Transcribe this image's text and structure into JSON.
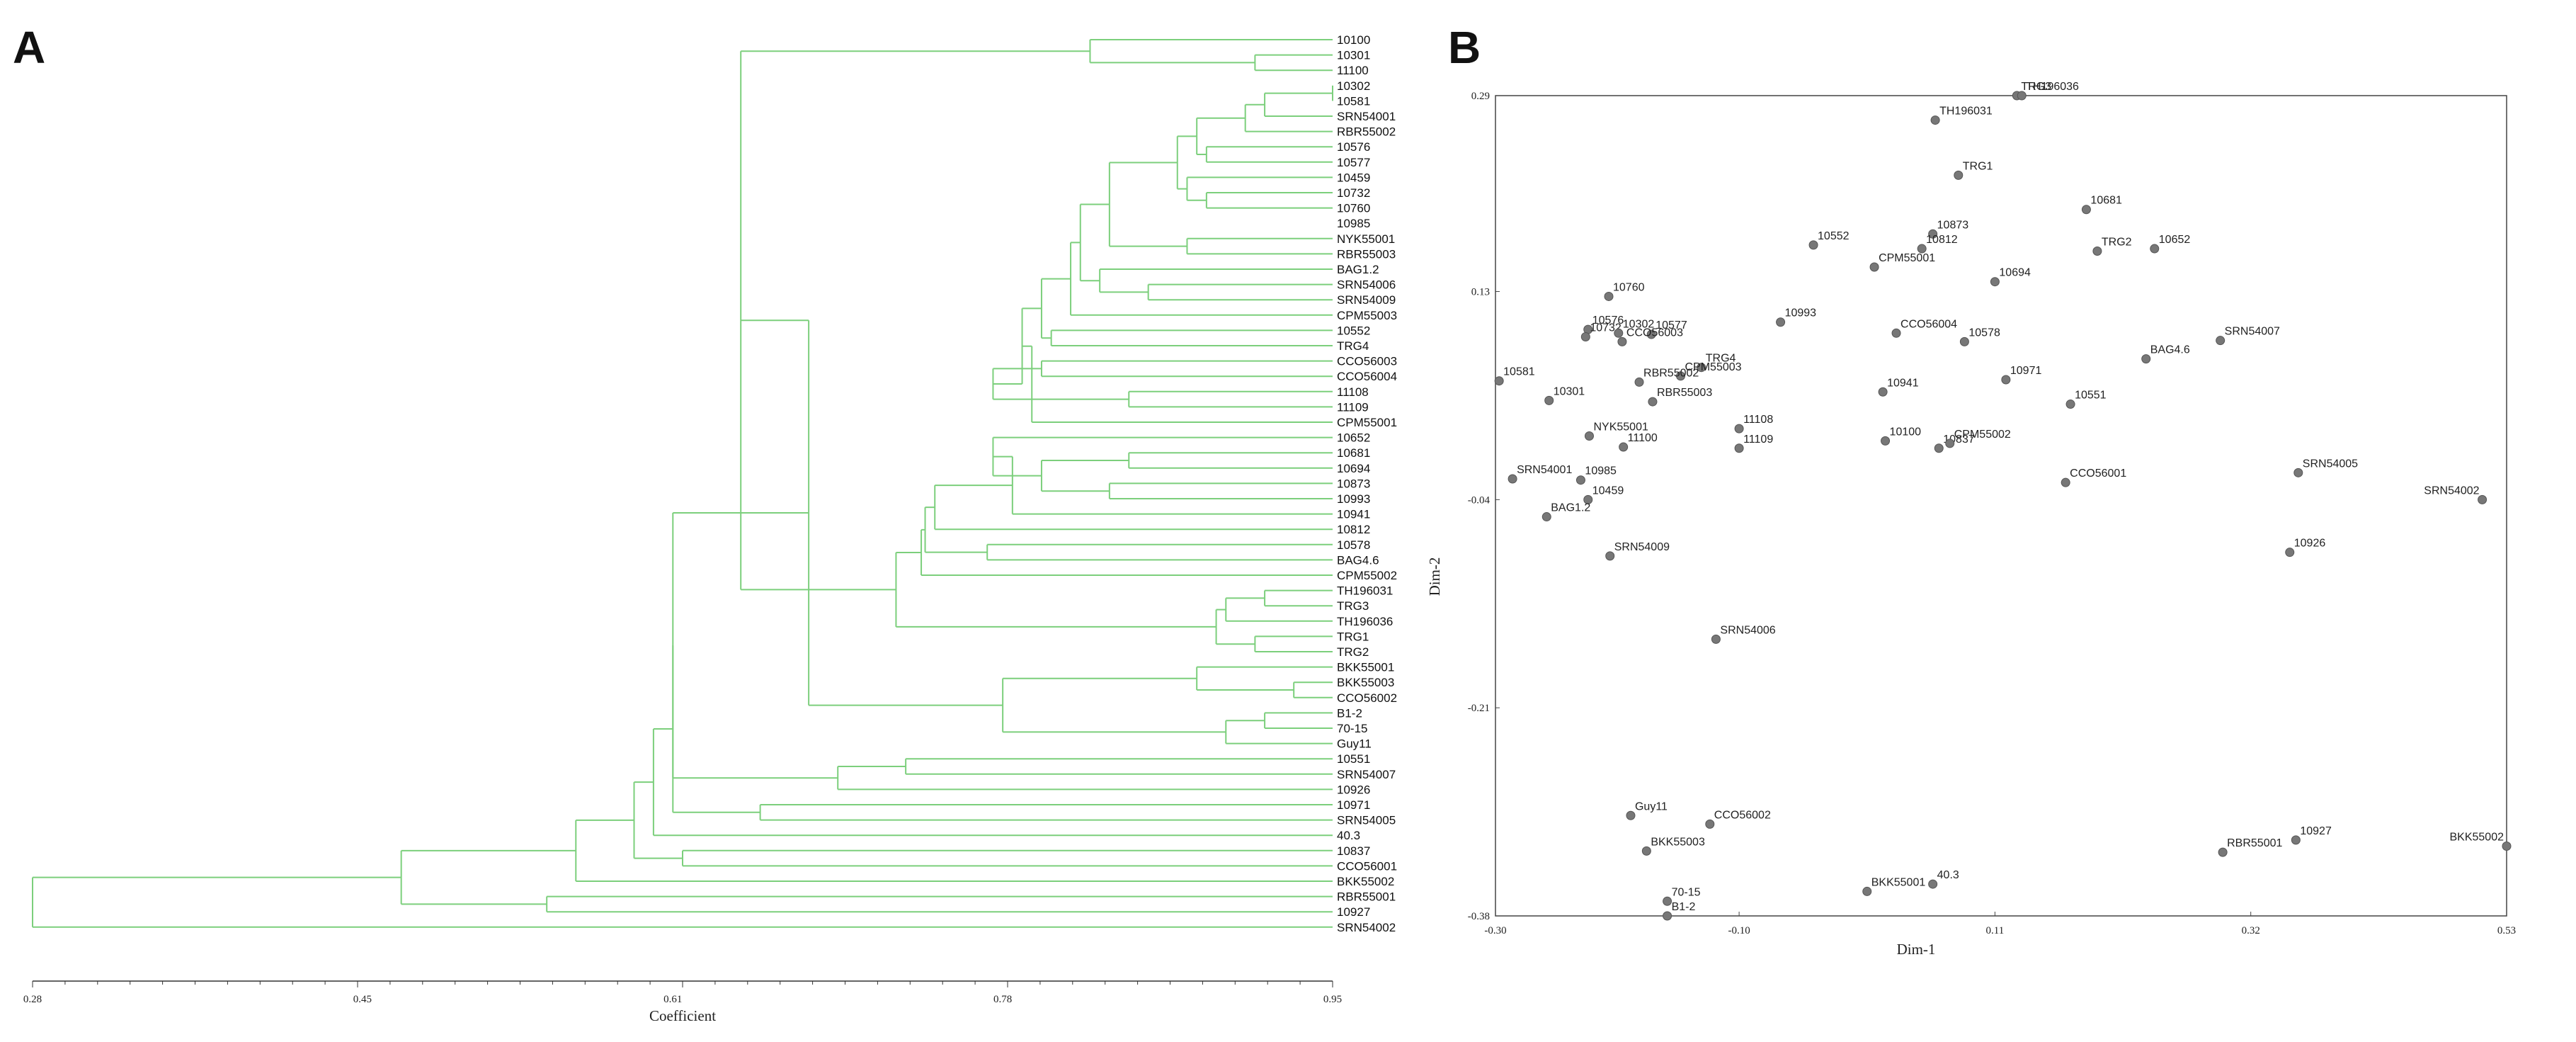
{
  "panels": {
    "a_label": "A",
    "b_label": "B"
  },
  "chart_data": [
    {
      "type": "dendrogram",
      "xlabel": "Coefficient",
      "xlim": [
        0.28,
        0.95
      ],
      "xticks": [
        "0.28",
        "0.45",
        "0.61",
        "0.78",
        "0.95"
      ],
      "line_color": "#7ccf7c",
      "leaves": [
        "10100",
        "10301",
        "11100",
        "10302",
        "10581",
        "SRN54001",
        "RBR55002",
        "10576",
        "10577",
        "10459",
        "10732",
        "10760",
        "10985",
        "NYK55001",
        "RBR55003",
        "BAG1.2",
        "SRN54006",
        "SRN54009",
        "CPM55003",
        "10552",
        "TRG4",
        "CCO56003",
        "CCO56004",
        "11108",
        "11109",
        "CPM55001",
        "10652",
        "10681",
        "10694",
        "10873",
        "10993",
        "10941",
        "10812",
        "10578",
        "BAG4.6",
        "CPM55002",
        "TH196031",
        "TRG3",
        "TH196036",
        "TRG1",
        "TRG2",
        "BKK55001",
        "BKK55003",
        "CCO56002",
        "B1-2",
        "70-15",
        "Guy11",
        "10551",
        "SRN54007",
        "10926",
        "10971",
        "SRN54005",
        "40.3",
        "10837",
        "CCO56001",
        "BKK55002",
        "RBR55001",
        "10927",
        "SRN54002"
      ],
      "merges": [
        [
          1,
          2,
          0.91
        ],
        [
          0,
          "n0",
          0.825
        ],
        [
          3,
          4,
          0.95
        ],
        [
          "n2",
          5,
          0.915
        ],
        [
          "n3",
          6,
          0.905
        ],
        [
          7,
          8,
          0.885
        ],
        [
          "n4",
          "n5",
          0.88
        ],
        [
          10,
          11,
          0.885
        ],
        [
          9,
          "n7",
          0.875
        ],
        [
          "n6",
          "n8",
          0.87
        ],
        [
          13,
          14,
          0.875
        ],
        [
          "n9",
          "n10",
          0.835
        ],
        [
          16,
          17,
          0.855
        ],
        [
          15,
          "n12",
          0.83
        ],
        [
          "n11",
          "n13",
          0.82
        ],
        [
          18,
          "n14",
          0.815
        ],
        [
          19,
          20,
          0.805
        ],
        [
          "n15",
          "n16",
          0.8
        ],
        [
          21,
          22,
          0.8
        ],
        [
          23,
          24,
          0.845
        ],
        [
          "n18",
          "n19",
          0.775
        ],
        [
          "n17",
          "n20",
          0.79
        ],
        [
          "n21",
          25,
          0.795
        ],
        [
          27,
          28,
          0.845
        ],
        [
          29,
          30,
          0.835
        ],
        [
          "n23",
          "n24",
          0.8
        ],
        [
          26,
          "n25",
          0.775
        ],
        [
          "n26",
          31,
          0.785
        ],
        [
          "n27",
          32,
          0.745
        ],
        [
          33,
          34,
          0.772
        ],
        [
          "n28",
          "n29",
          0.74
        ],
        [
          "n30",
          35,
          0.738
        ],
        [
          36,
          37,
          0.915
        ],
        [
          "n32",
          38,
          0.895
        ],
        [
          39,
          40,
          0.91
        ],
        [
          "n33",
          "n34",
          0.89
        ],
        [
          "n31",
          "n35",
          0.725
        ],
        [
          "n1",
          "n36",
          0.645
        ],
        [
          42,
          43,
          0.93
        ],
        [
          41,
          "n38",
          0.88
        ],
        [
          44,
          45,
          0.915
        ],
        [
          "n40",
          46,
          0.895
        ],
        [
          "n39",
          "n41",
          0.78
        ],
        [
          "n37",
          "n42",
          0.68
        ],
        [
          47,
          48,
          0.73
        ],
        [
          49,
          "n44",
          0.695
        ],
        [
          "n43",
          "n45",
          0.61
        ],
        [
          50,
          51,
          0.655
        ],
        [
          "n46",
          "n47",
          0.61
        ],
        [
          "n48",
          52,
          0.6
        ],
        [
          53,
          54,
          0.615
        ],
        [
          "n49",
          "n50",
          0.59
        ],
        [
          "n51",
          55,
          0.56
        ],
        [
          56,
          57,
          0.545
        ],
        [
          "n52",
          "n53",
          0.47
        ],
        [
          "n54",
          58,
          0.28
        ]
      ]
    },
    {
      "type": "scatter",
      "xlabel": "Dim-1",
      "ylabel": "Dim-2",
      "xlim": [
        -0.3,
        0.53
      ],
      "ylim": [
        -0.38,
        0.29
      ],
      "xticks": [
        "-0.30",
        "-0.10",
        "0.11",
        "0.32",
        "0.53"
      ],
      "yticks": [
        "0.29",
        "0.13",
        "-0.04",
        "-0.21",
        "-0.38"
      ],
      "marker_color": "#777777",
      "points": [
        {
          "label": "TRG3",
          "x": 0.128,
          "y": 0.29
        },
        {
          "label": "TH196036",
          "x": 0.132,
          "y": 0.29
        },
        {
          "label": "TH196031",
          "x": 0.061,
          "y": 0.27
        },
        {
          "label": "TRG1",
          "x": 0.08,
          "y": 0.225
        },
        {
          "label": "10681",
          "x": 0.185,
          "y": 0.197
        },
        {
          "label": "10873",
          "x": 0.059,
          "y": 0.177
        },
        {
          "label": "10552",
          "x": -0.039,
          "y": 0.168
        },
        {
          "label": "10812",
          "x": 0.05,
          "y": 0.165
        },
        {
          "label": "CPM55001",
          "x": 0.011,
          "y": 0.15
        },
        {
          "label": "TRG2",
          "x": 0.194,
          "y": 0.163
        },
        {
          "label": "10652",
          "x": 0.241,
          "y": 0.165
        },
        {
          "label": "10694",
          "x": 0.11,
          "y": 0.138
        },
        {
          "label": "10760",
          "x": -0.207,
          "y": 0.126
        },
        {
          "label": "10993",
          "x": -0.066,
          "y": 0.105
        },
        {
          "label": "10576",
          "x": -0.224,
          "y": 0.099
        },
        {
          "label": "10732",
          "x": -0.226,
          "y": 0.093
        },
        {
          "label": "10302",
          "x": -0.199,
          "y": 0.096
        },
        {
          "label": "10577",
          "x": -0.172,
          "y": 0.095
        },
        {
          "label": "CCO56003",
          "x": -0.196,
          "y": 0.089
        },
        {
          "label": "CCO56004",
          "x": 0.029,
          "y": 0.096
        },
        {
          "label": "10578",
          "x": 0.085,
          "y": 0.089
        },
        {
          "label": "SRN54007",
          "x": 0.295,
          "y": 0.09
        },
        {
          "label": "BAG4.6",
          "x": 0.234,
          "y": 0.075
        },
        {
          "label": "10581",
          "x": -0.297,
          "y": 0.057
        },
        {
          "label": "TRG4",
          "x": -0.131,
          "y": 0.068
        },
        {
          "label": "CPM55003",
          "x": -0.148,
          "y": 0.061
        },
        {
          "label": "RBR55002",
          "x": -0.182,
          "y": 0.056
        },
        {
          "label": "10971",
          "x": 0.119,
          "y": 0.058
        },
        {
          "label": "10941",
          "x": 0.018,
          "y": 0.048
        },
        {
          "label": "10301",
          "x": -0.256,
          "y": 0.041
        },
        {
          "label": "RBR55003",
          "x": -0.171,
          "y": 0.04
        },
        {
          "label": "10551",
          "x": 0.172,
          "y": 0.038
        },
        {
          "label": "NYK55001",
          "x": -0.223,
          "y": 0.012
        },
        {
          "label": "11108",
          "x": -0.1,
          "y": 0.018
        },
        {
          "label": "11100",
          "x": -0.195,
          "y": 0.003
        },
        {
          "label": "11109",
          "x": -0.1,
          "y": 0.002
        },
        {
          "label": "10100",
          "x": 0.02,
          "y": 0.008
        },
        {
          "label": "10837",
          "x": 0.064,
          "y": 0.002
        },
        {
          "label": "CPM55002",
          "x": 0.073,
          "y": 0.006
        },
        {
          "label": "SRN54005",
          "x": 0.359,
          "y": -0.018
        },
        {
          "label": "CCO56001",
          "x": 0.168,
          "y": -0.026
        },
        {
          "label": "SRN54001",
          "x": -0.286,
          "y": -0.023
        },
        {
          "label": "10985",
          "x": -0.23,
          "y": -0.024
        },
        {
          "label": "SRN54002",
          "x": 0.51,
          "y": -0.04
        },
        {
          "label": "10459",
          "x": -0.224,
          "y": -0.04
        },
        {
          "label": "BAG1.2",
          "x": -0.258,
          "y": -0.054
        },
        {
          "label": "10926",
          "x": 0.352,
          "y": -0.083
        },
        {
          "label": "SRN54009",
          "x": -0.206,
          "y": -0.086
        },
        {
          "label": "SRN54006",
          "x": -0.119,
          "y": -0.154
        },
        {
          "label": "Guy11",
          "x": -0.189,
          "y": -0.298
        },
        {
          "label": "CCO56002",
          "x": -0.124,
          "y": -0.305
        },
        {
          "label": "10927",
          "x": 0.357,
          "y": -0.318
        },
        {
          "label": "BKK55002",
          "x": 0.53,
          "y": -0.323
        },
        {
          "label": "BKK55003",
          "x": -0.176,
          "y": -0.327
        },
        {
          "label": "RBR55001",
          "x": 0.297,
          "y": -0.328
        },
        {
          "label": "40.3",
          "x": 0.059,
          "y": -0.354
        },
        {
          "label": "BKK55001",
          "x": 0.005,
          "y": -0.36
        },
        {
          "label": "70-15",
          "x": -0.159,
          "y": -0.368
        },
        {
          "label": "B1-2",
          "x": -0.159,
          "y": -0.38
        }
      ]
    }
  ]
}
